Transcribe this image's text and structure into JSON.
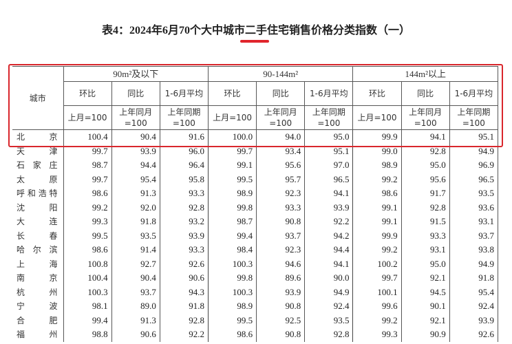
{
  "title": "表4：2024年6月70个大中城市二手住宅销售价格分类指数（一）",
  "accent_color": "#d9262c",
  "header": {
    "city": "城市",
    "groups": [
      "90m²及以下",
      "90-144m²",
      "144m²以上"
    ],
    "sub": [
      [
        "环比",
        "同比",
        "1-6月平均"
      ],
      [
        "环比",
        "同比",
        "1-6月平均"
      ],
      [
        "环比",
        "同比",
        "1-6月平均"
      ]
    ],
    "base": [
      "上月=100",
      "上年同月=100",
      "上年同期=100"
    ]
  },
  "rows": [
    {
      "city": "北京",
      "values": [
        "100.4",
        "90.4",
        "91.6",
        "100.0",
        "94.0",
        "95.0",
        "99.9",
        "94.1",
        "95.1"
      ]
    },
    {
      "city": "天津",
      "values": [
        "99.7",
        "93.9",
        "96.0",
        "99.7",
        "93.4",
        "95.1",
        "99.0",
        "92.8",
        "94.9"
      ]
    },
    {
      "city": "石家庄",
      "values": [
        "98.7",
        "94.4",
        "96.4",
        "99.1",
        "95.6",
        "97.0",
        "98.9",
        "95.0",
        "96.9"
      ]
    },
    {
      "city": "太原",
      "values": [
        "99.7",
        "95.4",
        "95.8",
        "99.5",
        "95.7",
        "96.5",
        "99.2",
        "95.6",
        "96.5"
      ]
    },
    {
      "city": "呼和浩特",
      "values": [
        "98.6",
        "91.3",
        "93.3",
        "98.9",
        "92.3",
        "94.1",
        "98.6",
        "91.7",
        "93.5"
      ]
    },
    {
      "city": "沈阳",
      "values": [
        "99.2",
        "92.0",
        "92.8",
        "99.8",
        "93.3",
        "93.9",
        "99.1",
        "92.8",
        "93.6"
      ]
    },
    {
      "city": "大连",
      "values": [
        "99.3",
        "91.8",
        "93.2",
        "98.7",
        "90.8",
        "92.2",
        "99.1",
        "91.5",
        "93.1"
      ]
    },
    {
      "city": "长春",
      "values": [
        "99.5",
        "93.5",
        "93.9",
        "99.4",
        "93.7",
        "94.2",
        "99.9",
        "93.3",
        "93.7"
      ]
    },
    {
      "city": "哈尔滨",
      "values": [
        "98.6",
        "91.4",
        "93.3",
        "98.4",
        "92.3",
        "94.4",
        "99.2",
        "93.1",
        "93.8"
      ]
    },
    {
      "city": "上海",
      "values": [
        "100.8",
        "92.7",
        "92.6",
        "100.3",
        "94.6",
        "94.1",
        "100.2",
        "95.0",
        "94.9"
      ]
    },
    {
      "city": "南京",
      "values": [
        "100.4",
        "90.4",
        "90.6",
        "99.8",
        "89.6",
        "90.0",
        "99.7",
        "92.1",
        "91.8"
      ]
    },
    {
      "city": "杭州",
      "values": [
        "100.3",
        "93.7",
        "94.3",
        "100.3",
        "93.9",
        "94.9",
        "100.1",
        "94.5",
        "95.4"
      ]
    },
    {
      "city": "宁波",
      "values": [
        "98.1",
        "89.0",
        "91.8",
        "98.9",
        "90.8",
        "92.4",
        "99.6",
        "90.1",
        "92.4"
      ]
    },
    {
      "city": "合肥",
      "values": [
        "99.4",
        "91.3",
        "92.8",
        "99.5",
        "92.5",
        "93.5",
        "99.2",
        "92.1",
        "93.9"
      ]
    },
    {
      "city": "福州",
      "values": [
        "98.8",
        "90.6",
        "92.2",
        "98.6",
        "90.8",
        "92.8",
        "99.3",
        "90.9",
        "92.6"
      ]
    }
  ]
}
